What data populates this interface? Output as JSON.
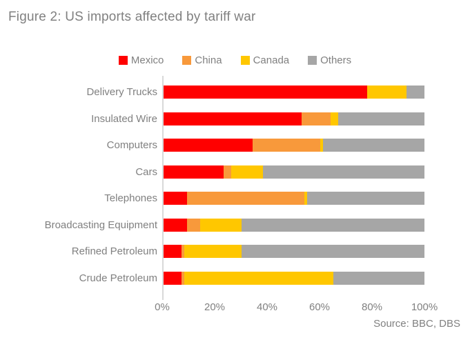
{
  "title": "Figure 2: US imports affected by tariff war",
  "source": "Source: BBC, DBS",
  "colors": {
    "mexico": "#FF0000",
    "china": "#F8993B",
    "canada": "#FFC700",
    "others": "#A6A6A6",
    "text_gray": "#808080",
    "axis_line": "#D9D9D9"
  },
  "chart_data": {
    "type": "bar",
    "orientation": "horizontal",
    "stacked": true,
    "title": "Figure 2: US imports affected by tariff war",
    "categories": [
      "Delivery Trucks",
      "Insulated Wire",
      "Computers",
      "Cars",
      "Telephones",
      "Broadcasting Equipment",
      "Refined Petroleum",
      "Crude Petroleum"
    ],
    "series": [
      {
        "name": "Mexico",
        "color": "#FF0000",
        "values": [
          78,
          53,
          34,
          23,
          9,
          9,
          7,
          7
        ]
      },
      {
        "name": "China",
        "color": "#F8993B",
        "values": [
          0,
          11,
          26,
          3,
          45,
          5,
          1,
          1
        ]
      },
      {
        "name": "Canada",
        "color": "#FFC700",
        "values": [
          15,
          3,
          1,
          12,
          1,
          16,
          22,
          57
        ]
      },
      {
        "name": "Others",
        "color": "#A6A6A6",
        "values": [
          7,
          33,
          39,
          62,
          45,
          70,
          70,
          35
        ]
      }
    ],
    "xlabel": "",
    "ylabel": "",
    "xlim": [
      0,
      100
    ],
    "x_ticks": [
      "0%",
      "20%",
      "40%",
      "60%",
      "80%",
      "100%"
    ],
    "grid": false,
    "legend_position": "top",
    "unit": "percent"
  }
}
